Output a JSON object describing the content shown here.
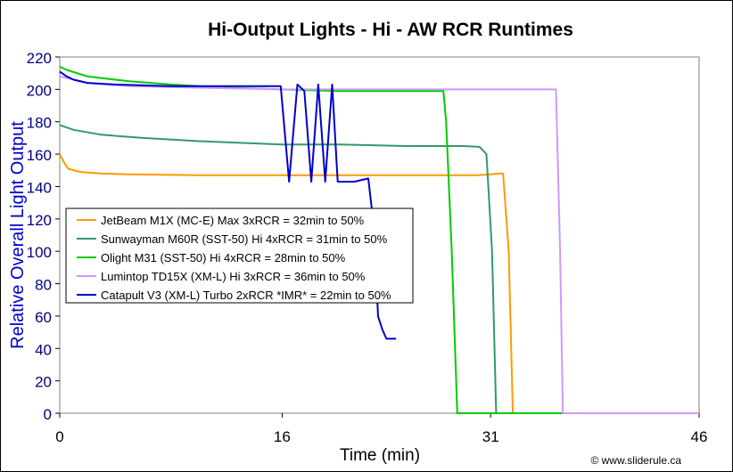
{
  "chart_data": {
    "type": "line",
    "title": "Hi-Output Lights - Hi - AW RCR Runtimes",
    "xlabel": "Time (min)",
    "ylabel": "Relative Overall Light Output",
    "credit": "© www.sliderule.ca",
    "xlim": [
      0,
      46
    ],
    "ylim": [
      0,
      220
    ],
    "xticks": [
      0,
      16,
      31,
      46
    ],
    "yticks": [
      0,
      20,
      40,
      60,
      80,
      100,
      120,
      140,
      160,
      180,
      200,
      220
    ],
    "grid": false,
    "legend_position": "center-left",
    "series": [
      {
        "name": "JetBeam M1X (MC-E) Max 3xRCR = 32min to 50%",
        "color": "#FF9900",
        "points": [
          [
            0,
            160
          ],
          [
            0.3,
            155
          ],
          [
            0.6,
            151
          ],
          [
            1.5,
            149
          ],
          [
            3,
            148
          ],
          [
            5,
            147.5
          ],
          [
            10,
            147
          ],
          [
            16,
            147
          ],
          [
            20,
            147
          ],
          [
            25,
            147
          ],
          [
            30,
            147
          ],
          [
            31,
            147.5
          ],
          [
            31.5,
            148
          ],
          [
            31.9,
            148
          ],
          [
            32.3,
            100
          ],
          [
            32.6,
            0
          ],
          [
            46,
            0
          ]
        ]
      },
      {
        "name": "Sunwayman M60R (SST-50) Hi 4xRCR = 31min to 50%",
        "color": "#339966",
        "points": [
          [
            0,
            178
          ],
          [
            1,
            175
          ],
          [
            3,
            172
          ],
          [
            6,
            170
          ],
          [
            10,
            168
          ],
          [
            16,
            166
          ],
          [
            20,
            166
          ],
          [
            25,
            165
          ],
          [
            29,
            165
          ],
          [
            30.2,
            164.5
          ],
          [
            30.7,
            160
          ],
          [
            31.1,
            100
          ],
          [
            31.4,
            0
          ],
          [
            46,
            0
          ]
        ]
      },
      {
        "name": "Olight M31 (SST-50) Hi 4xRCR = 28min to 50%",
        "color": "#00CC00",
        "points": [
          [
            0,
            214
          ],
          [
            0.5,
            212
          ],
          [
            2,
            208
          ],
          [
            5,
            205
          ],
          [
            8,
            203
          ],
          [
            12,
            201
          ],
          [
            16,
            200
          ],
          [
            20,
            199
          ],
          [
            25,
            199
          ],
          [
            27.6,
            199
          ],
          [
            27.8,
            180
          ],
          [
            28.2,
            100
          ],
          [
            28.6,
            0
          ],
          [
            46,
            0
          ]
        ]
      },
      {
        "name": "Lumintop TD15X (XM-L) Hi 3xRCR = 36min to 50%",
        "color": "#CC99FF",
        "points": [
          [
            0,
            208
          ],
          [
            2,
            204
          ],
          [
            5,
            202
          ],
          [
            10,
            201
          ],
          [
            16,
            200
          ],
          [
            20,
            200
          ],
          [
            25,
            200
          ],
          [
            30,
            200
          ],
          [
            35,
            200
          ],
          [
            35.7,
            200
          ],
          [
            36,
            100
          ],
          [
            36.2,
            0
          ],
          [
            46,
            0
          ]
        ]
      },
      {
        "name": "Catapult V3 (XM-L) Turbo 2xRCR *IMR* = 22min to 50%",
        "color": "#0000CC",
        "points": [
          [
            0,
            211
          ],
          [
            0.5,
            208
          ],
          [
            1,
            206
          ],
          [
            2,
            204
          ],
          [
            4,
            203
          ],
          [
            8,
            202
          ],
          [
            12,
            202
          ],
          [
            15,
            202
          ],
          [
            15.9,
            202
          ],
          [
            16.5,
            143
          ],
          [
            17.1,
            203
          ],
          [
            17.6,
            199
          ],
          [
            18.1,
            143
          ],
          [
            18.6,
            203
          ],
          [
            19.1,
            143
          ],
          [
            19.6,
            203
          ],
          [
            20,
            143
          ],
          [
            21.2,
            143
          ],
          [
            22.2,
            145
          ],
          [
            22.6,
            115
          ],
          [
            22.8,
            80
          ],
          [
            22.9,
            60
          ],
          [
            23.2,
            52
          ],
          [
            23.5,
            46
          ],
          [
            24.2,
            46
          ]
        ]
      }
    ]
  }
}
